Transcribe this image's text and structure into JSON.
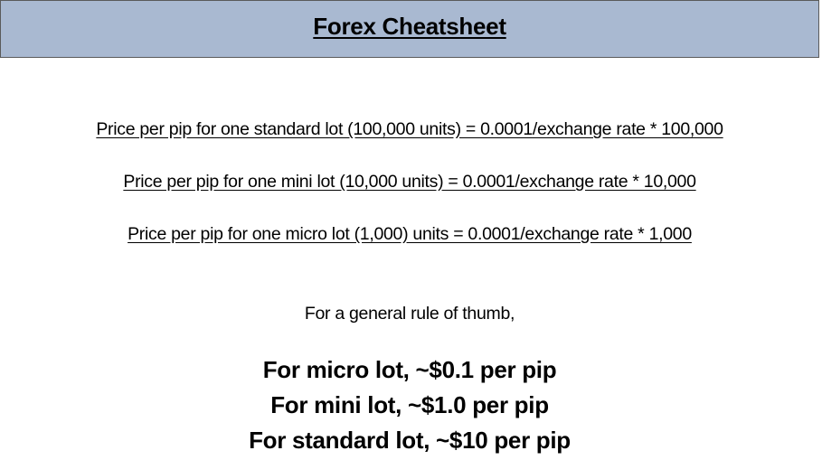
{
  "header": {
    "title": "Forex Cheatsheet"
  },
  "formulas": [
    "Price per pip for one standard lot (100,000 units) = 0.0001/exchange rate * 100,000",
    "Price per pip for one mini lot (10,000 units) = 0.0001/exchange rate * 10,000",
    "Price per pip for one micro lot (1,000) units = 0.0001/exchange rate * 1,000"
  ],
  "rule_of_thumb": {
    "intro": "For a general rule of thumb,",
    "lines": [
      "For micro lot, ~$0.1 per pip",
      "For mini lot, ~$1.0 per pip",
      "For standard lot, ~$10 per pip"
    ]
  },
  "colors": {
    "header_background": "#a9b9d1",
    "header_border": "#5a5a5a",
    "text": "#000000",
    "page_background": "#ffffff"
  }
}
